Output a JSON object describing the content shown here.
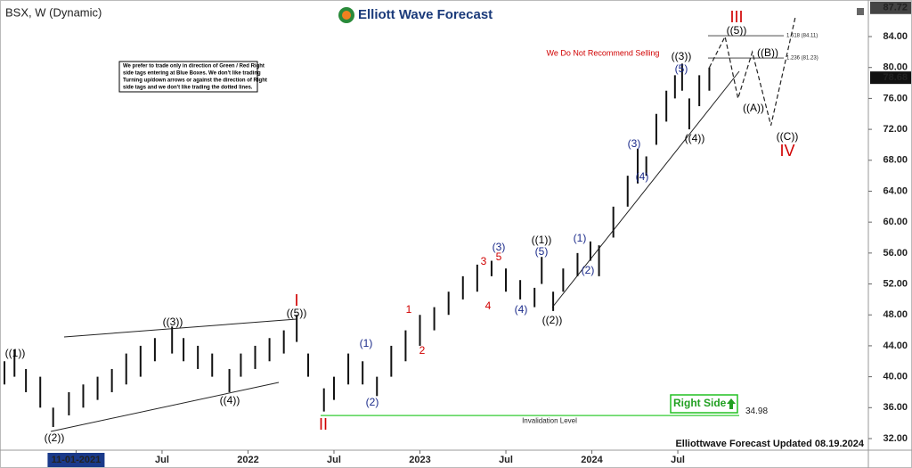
{
  "chart_data": {
    "type": "ohlc",
    "title": "BSX, W (Dynamic)",
    "brand": "Elliott Wave Forecast",
    "footer": "Elliottwave Forecast Updated 08.19.2024",
    "note": [
      "We prefer to trade only in direction of Green / Red Right",
      "side tags entering at Blue Boxes. We don't like trading",
      "Turning up/down arrows or against the direction of Right",
      "side tags and we don't like trading the dotted lines."
    ],
    "right_side": "Right Side",
    "ylim": [
      30.5,
      88.5
    ],
    "yticks": [
      {
        "value": 32,
        "label": "32.00"
      },
      {
        "value": 36,
        "label": "36.00"
      },
      {
        "value": 40,
        "label": "40.00"
      },
      {
        "value": 44,
        "label": "44.00"
      },
      {
        "value": 48,
        "label": "48.00"
      },
      {
        "value": 52,
        "label": "52.00"
      },
      {
        "value": 56,
        "label": "56.00"
      },
      {
        "value": 60,
        "label": "60.00"
      },
      {
        "value": 64,
        "label": "64.00"
      },
      {
        "value": 68,
        "label": "68.00"
      },
      {
        "value": 72,
        "label": "72.00"
      },
      {
        "value": 76,
        "label": "76.00"
      },
      {
        "value": 80,
        "label": "80.00"
      },
      {
        "value": 84,
        "label": "84.00"
      }
    ],
    "xlim": [
      -5,
      55.3
    ],
    "xticks": [
      {
        "value": 0,
        "label": "11-01-2021"
      },
      {
        "value": 6,
        "label": "Jul"
      },
      {
        "value": 12,
        "label": "2022"
      },
      {
        "value": 18,
        "label": "Jul"
      },
      {
        "value": 24,
        "label": "2023"
      },
      {
        "value": 30,
        "label": "Jul"
      },
      {
        "value": 36,
        "label": "2024"
      },
      {
        "value": 42,
        "label": "Jul"
      }
    ],
    "top_price": 87.72,
    "last_price": 78.68,
    "invalidation": {
      "label": "Invalidation Level",
      "value": 34.98
    },
    "fib_levels": [
      {
        "label": "1.618 (84.11)",
        "value": 84.11
      },
      {
        "label": "1.236 (81.23)",
        "value": 81.23
      }
    ],
    "bars": {
      "x": [
        -5,
        -4.3,
        -3.5,
        -2.5,
        -1.6,
        -0.5,
        0.5,
        1.5,
        2.5,
        3.5,
        4.5,
        5.5,
        6.7,
        7.5,
        8.5,
        9.5,
        10.7,
        11.5,
        12.5,
        13.5,
        14.5,
        15.4,
        16.2,
        17.3,
        18,
        19,
        20,
        21,
        22,
        23,
        24,
        25,
        26,
        27,
        28,
        29,
        30,
        31,
        32,
        32.5,
        33.3,
        34,
        35,
        35.9,
        36.5,
        37.5,
        38.5,
        39.2,
        39.8,
        40.5,
        41.2,
        41.8,
        42.3,
        42.8,
        43.5,
        44.2
      ],
      "high": [
        42,
        43.5,
        41,
        40,
        36,
        38,
        39,
        40,
        41,
        43,
        44,
        45,
        46.5,
        45,
        44,
        43,
        41,
        43,
        44,
        45,
        46,
        48,
        43,
        38.5,
        40,
        43,
        42,
        40,
        44,
        46,
        48,
        49,
        51,
        53,
        54.5,
        55,
        54,
        52.5,
        51.5,
        55.5,
        51,
        54,
        56,
        57.5,
        57,
        62,
        66,
        69.5,
        68.5,
        74,
        77,
        79,
        80.5,
        76,
        79,
        80
      ],
      "low": [
        39,
        40,
        38,
        36,
        33.5,
        35,
        36,
        37,
        38,
        39,
        40,
        42,
        43,
        42,
        41,
        40,
        38,
        40,
        41,
        42,
        43,
        44.5,
        40,
        35.5,
        37,
        39,
        39,
        37.5,
        40,
        42,
        44,
        46,
        48,
        50,
        51,
        53,
        51,
        50,
        49,
        52,
        48.5,
        51,
        53,
        55,
        53,
        58,
        62,
        65,
        66,
        70,
        73,
        76,
        77,
        72,
        75,
        77
      ]
    },
    "projection": {
      "x": [
        44.2,
        45.3,
        46.2,
        47.2,
        48.5,
        50.2
      ],
      "values": [
        80,
        84,
        76,
        82,
        72.5,
        86.5
      ]
    },
    "annotations": [
      {
        "text": "((1))",
        "color": "#000"
      },
      {
        "text": "((2))",
        "color": "#000"
      },
      {
        "text": "((3))",
        "color": "#000"
      },
      {
        "text": "((4))",
        "color": "#000"
      },
      {
        "text": "((5))",
        "color": "#000"
      },
      {
        "text": "I",
        "color": "#d00000"
      },
      {
        "text": "II",
        "color": "#d00000"
      },
      {
        "text": "(1)",
        "color": "#1a2a8a"
      },
      {
        "text": "(2)",
        "color": "#1a2a8a"
      },
      {
        "text": "1",
        "color": "#d00000"
      },
      {
        "text": "2",
        "color": "#d00000"
      },
      {
        "text": "3",
        "color": "#d00000"
      },
      {
        "text": "4",
        "color": "#d00000"
      },
      {
        "text": "5",
        "color": "#d00000"
      },
      {
        "text": "(3)",
        "color": "#1a2a8a"
      },
      {
        "text": "(4)",
        "color": "#1a2a8a"
      },
      {
        "text": "(5)",
        "color": "#1a2a8a"
      },
      {
        "text": "((1))",
        "color": "#000"
      },
      {
        "text": "((2))",
        "color": "#000"
      },
      {
        "text": "(1)",
        "color": "#1a2a8a"
      },
      {
        "text": "(2)",
        "color": "#1a2a8a"
      },
      {
        "text": "(3)",
        "color": "#1a2a8a"
      },
      {
        "text": "(4)",
        "color": "#1a2a8a"
      },
      {
        "text": "(5)",
        "color": "#1a2a8a"
      },
      {
        "text": "((3))",
        "color": "#000"
      },
      {
        "text": "((4))",
        "color": "#000"
      },
      {
        "text": "((5))",
        "color": "#000"
      },
      {
        "text": "III",
        "color": "#d00000"
      },
      {
        "text": "((B))",
        "color": "#000"
      },
      {
        "text": "((A))",
        "color": "#000"
      },
      {
        "text": "((C))",
        "color": "#000"
      },
      {
        "text": "IV",
        "color": "#d00000"
      },
      {
        "text": "We Do Not Recommend Selling",
        "color": "#d00000"
      }
    ]
  }
}
